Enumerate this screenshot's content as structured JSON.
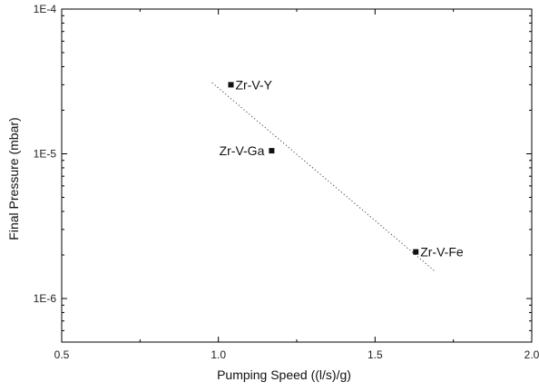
{
  "chart_data": {
    "type": "scatter",
    "xlabel": "Pumping Speed ((l/s)/g)",
    "ylabel": "Final Pressure (mbar)",
    "xlim": [
      0.5,
      2.0
    ],
    "ylim": [
      5e-07,
      0.0001
    ],
    "yscale": "log",
    "grid": false,
    "x_ticks": [
      0.5,
      1.0,
      1.5,
      2.0
    ],
    "x_tick_labels": [
      "0.5",
      "1.0",
      "1.5",
      "2.0"
    ],
    "y_ticks": [
      1e-06,
      1e-05,
      0.0001
    ],
    "y_tick_labels": [
      "1E-6",
      "1E-5",
      "1E-4"
    ],
    "points": [
      {
        "label": "Zr-V-Y",
        "x": 1.04,
        "y": 3e-05
      },
      {
        "label": "Zr-V-Ga",
        "x": 1.17,
        "y": 1.05e-05
      },
      {
        "label": "Zr-V-Fe",
        "x": 1.63,
        "y": 2.1e-06
      }
    ],
    "fit_line": {
      "style": "dotted",
      "x": [
        0.98,
        1.69
      ],
      "y": [
        3.1e-05,
        1.55e-06
      ]
    },
    "colors": {
      "marker": "#111111",
      "fit_line": "#444444",
      "axis": "#000000"
    }
  }
}
